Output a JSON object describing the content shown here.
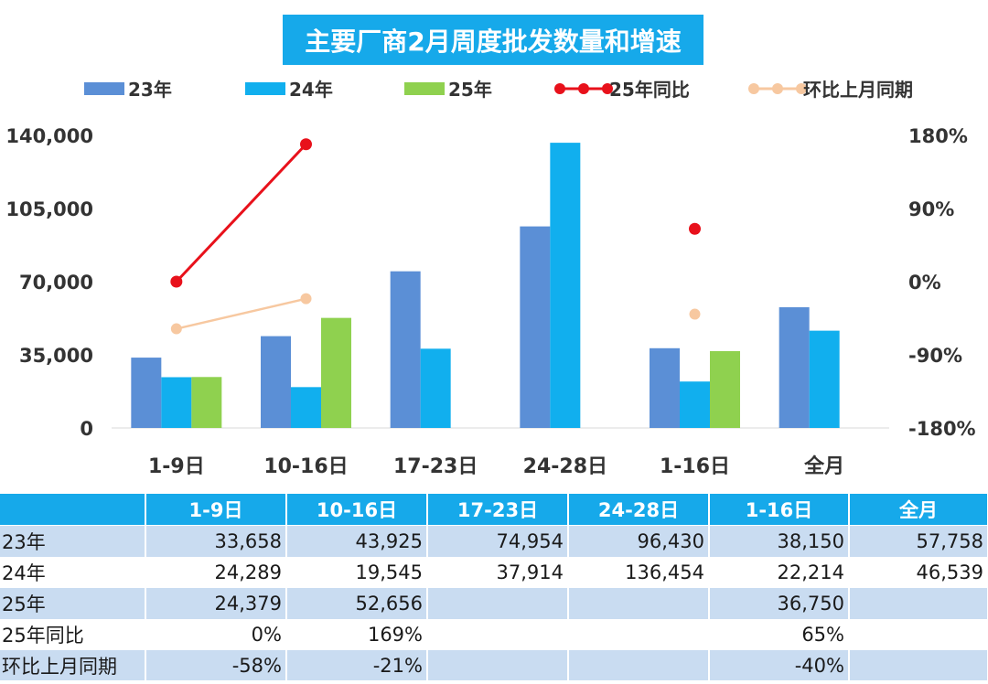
{
  "title": "主要厂商2月周度批发数量和增速",
  "colors": {
    "s23": "#5b8fd6",
    "s24": "#11afee",
    "s25": "#8fd14f",
    "yoy": "#e8111b",
    "mom": "#f7c8a0",
    "header": "#16a9ea",
    "row_shade": "#c9dcf1"
  },
  "chart_data": {
    "type": "bar",
    "categories": [
      "1-9日",
      "10-16日",
      "17-23日",
      "24-28日",
      "1-16日",
      "全月"
    ],
    "series": [
      {
        "name": "23年",
        "type": "bar",
        "values": [
          33658,
          43925,
          74954,
          96430,
          38150,
          57758
        ]
      },
      {
        "name": "24年",
        "type": "bar",
        "values": [
          24289,
          19545,
          37914,
          136454,
          22214,
          46539
        ]
      },
      {
        "name": "25年",
        "type": "bar",
        "values": [
          24379,
          52656,
          null,
          null,
          36750,
          null
        ]
      },
      {
        "name": "25年同比",
        "type": "line",
        "axis": "right",
        "values": [
          0,
          169,
          null,
          null,
          65,
          null
        ]
      },
      {
        "name": "环比上月同期",
        "type": "line",
        "axis": "right",
        "values": [
          -58,
          -21,
          null,
          null,
          -40,
          null
        ]
      }
    ],
    "y_left": {
      "min": 0,
      "max": 140000,
      "ticks": [
        "0",
        "35,000",
        "70,000",
        "105,000",
        "140,000"
      ]
    },
    "y_right": {
      "min": -180,
      "max": 180,
      "ticks": [
        "-180%",
        "-90%",
        "0%",
        "90%",
        "180%"
      ]
    },
    "legend_position": "top",
    "grid": false
  },
  "table": {
    "headers": [
      "",
      "1-9日",
      "10-16日",
      "17-23日",
      "24-28日",
      "1-16日",
      "全月"
    ],
    "rows": [
      [
        "23年",
        "33,658",
        "43,925",
        "74,954",
        "96,430",
        "38,150",
        "57,758"
      ],
      [
        "24年",
        "24,289",
        "19,545",
        "37,914",
        "136,454",
        "22,214",
        "46,539"
      ],
      [
        "25年",
        "24,379",
        "52,656",
        "",
        "",
        "36,750",
        ""
      ],
      [
        "25年同比",
        "0%",
        "169%",
        "",
        "",
        "65%",
        ""
      ],
      [
        "环比上月同期",
        "-58%",
        "-21%",
        "",
        "",
        "-40%",
        ""
      ]
    ]
  }
}
